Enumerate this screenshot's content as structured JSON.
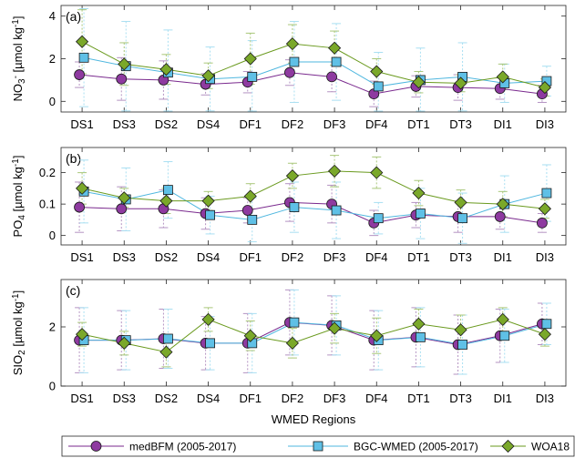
{
  "chart_data": [
    {
      "type": "line",
      "panel_label": "(a)",
      "ylabel_parts": [
        {
          "t": "NO",
          "s": "n"
        },
        {
          "t": "3",
          "s": "sub"
        },
        {
          "t": "-",
          "s": "sup"
        },
        {
          "t": " [µmol kg",
          "s": "n"
        },
        {
          "t": "-1",
          "s": "sup"
        },
        {
          "t": "]",
          "s": "n"
        }
      ],
      "ylim": [
        -0.5,
        4.5
      ],
      "yticks": [
        "0",
        "2",
        "4"
      ],
      "ytick_values": [
        0,
        2,
        4
      ],
      "categories": [
        "DS1",
        "DS3",
        "DS2",
        "DS4",
        "DF1",
        "DF2",
        "DF3",
        "DF4",
        "DT1",
        "DT3",
        "DI1",
        "DI3"
      ],
      "series": [
        {
          "name": "medBFM (2005-2017)",
          "values": [
            1.25,
            1.05,
            1.0,
            0.8,
            0.9,
            1.35,
            1.15,
            0.35,
            0.7,
            0.65,
            0.6,
            0.35
          ],
          "err": [
            0.6,
            1.0,
            0.9,
            0.5,
            0.5,
            0.6,
            0.7,
            0.6,
            0.5,
            0.6,
            0.5,
            0.4
          ]
        },
        {
          "name": "BGC-WMED (2005-2017)",
          "values": [
            2.05,
            1.65,
            1.35,
            1.05,
            1.15,
            1.85,
            1.85,
            0.7,
            1.0,
            1.15,
            0.85,
            0.95
          ],
          "err": [
            2.3,
            2.1,
            2.0,
            1.5,
            1.7,
            1.9,
            1.8,
            1.6,
            1.5,
            1.6,
            0.9,
            0.7
          ]
        },
        {
          "name": "WOA18",
          "values": [
            2.8,
            1.75,
            1.5,
            1.2,
            2.0,
            2.7,
            2.5,
            1.4,
            0.9,
            0.85,
            1.15,
            0.65
          ],
          "err": [
            1.5,
            1.0,
            0.7,
            0.6,
            1.2,
            0.9,
            0.8,
            0.6,
            0.5,
            0.4,
            0.6,
            0.4
          ]
        }
      ]
    },
    {
      "type": "line",
      "panel_label": "(b)",
      "ylabel_parts": [
        {
          "t": "PO",
          "s": "n"
        },
        {
          "t": "4",
          "s": "sub"
        },
        {
          "t": " [µmol kg",
          "s": "n"
        },
        {
          "t": "-1",
          "s": "sup"
        },
        {
          "t": "]",
          "s": "n"
        }
      ],
      "ylim": [
        -0.03,
        0.28
      ],
      "yticks": [
        "0",
        "0.1",
        "0.2"
      ],
      "ytick_values": [
        0,
        0.1,
        0.2
      ],
      "categories": [
        "DS1",
        "DS3",
        "DS2",
        "DS4",
        "DF1",
        "DF2",
        "DF3",
        "DF4",
        "DT1",
        "DT3",
        "DI1",
        "DI3"
      ],
      "series": [
        {
          "name": "medBFM (2005-2017)",
          "values": [
            0.09,
            0.085,
            0.085,
            0.07,
            0.08,
            0.105,
            0.1,
            0.04,
            0.065,
            0.06,
            0.06,
            0.04
          ],
          "err": [
            0.08,
            0.07,
            0.06,
            0.05,
            0.04,
            0.06,
            0.06,
            0.04,
            0.04,
            0.05,
            0.04,
            0.03
          ]
        },
        {
          "name": "BGC-WMED (2005-2017)",
          "values": [
            0.14,
            0.115,
            0.145,
            0.065,
            0.05,
            0.09,
            0.08,
            0.055,
            0.07,
            0.055,
            0.1,
            0.135
          ],
          "err": [
            0.1,
            0.1,
            0.09,
            0.06,
            0.07,
            0.08,
            0.09,
            0.05,
            0.08,
            0.08,
            0.09,
            0.09
          ]
        },
        {
          "name": "WOA18",
          "values": [
            0.15,
            0.12,
            0.11,
            0.11,
            0.125,
            0.19,
            0.205,
            0.2,
            0.135,
            0.105,
            0.1,
            0.085
          ],
          "err": [
            0.05,
            0.03,
            0.04,
            0.03,
            0.04,
            0.04,
            0.05,
            0.05,
            0.04,
            0.04,
            0.04,
            0.03
          ]
        }
      ]
    },
    {
      "type": "line",
      "panel_label": "(c)",
      "ylabel_parts": [
        {
          "t": "SIO",
          "s": "n"
        },
        {
          "t": "2",
          "s": "sub"
        },
        {
          "t": " [µmol kg",
          "s": "n"
        },
        {
          "t": "-1",
          "s": "sup"
        },
        {
          "t": "]",
          "s": "n"
        }
      ],
      "ylim": [
        0,
        3.6
      ],
      "yticks": [
        "0",
        "2"
      ],
      "ytick_values": [
        0,
        2
      ],
      "categories": [
        "DS1",
        "DS3",
        "DS2",
        "DS4",
        "DF1",
        "DF2",
        "DF3",
        "DF4",
        "DT1",
        "DT3",
        "DI1",
        "DI3"
      ],
      "xlabel": "WMED Regions",
      "series": [
        {
          "name": "medBFM (2005-2017)",
          "values": [
            1.55,
            1.55,
            1.6,
            1.45,
            1.45,
            2.15,
            2.05,
            1.55,
            1.65,
            1.4,
            1.7,
            2.1
          ],
          "err": [
            1.1,
            1.0,
            1.0,
            0.9,
            1.0,
            1.1,
            1.0,
            1.0,
            1.0,
            1.0,
            0.9,
            0.7
          ]
        },
        {
          "name": "BGC-WMED (2005-2017)",
          "values": [
            1.55,
            1.55,
            1.6,
            1.45,
            1.45,
            2.15,
            2.05,
            1.55,
            1.65,
            1.4,
            1.7,
            2.1
          ],
          "err": [
            1.1,
            1.0,
            1.0,
            0.9,
            1.0,
            1.1,
            1.0,
            1.0,
            1.0,
            1.0,
            0.9,
            0.7
          ]
        },
        {
          "name": "WOA18",
          "values": [
            1.75,
            1.45,
            1.15,
            2.25,
            1.7,
            1.45,
            1.95,
            1.7,
            2.1,
            1.9,
            2.25,
            1.75
          ],
          "err": [
            0.4,
            0.4,
            0.5,
            0.4,
            0.5,
            0.5,
            0.5,
            0.6,
            0.5,
            0.5,
            0.4,
            0.4
          ]
        }
      ]
    }
  ],
  "legend": {
    "placement": "bottom",
    "entries": [
      "medBFM (2005-2017)",
      "BGC-WMED (2005-2017)",
      "WOA18"
    ]
  },
  "colors": {
    "medBFM (2005-2017)": "#7a2a8e",
    "BGC-WMED (2005-2017)": "#4fb7df",
    "WOA18": "#6a9a1e",
    "err_medBFM (2005-2017)": "#b493c2",
    "err_BGC-WMED (2005-2017)": "#a9dff2",
    "err_WOA18": "#a9c77a",
    "marker_face_medBFM (2005-2017)": "#8e3aa0",
    "marker_face_BGC-WMED (2005-2017)": "#5fc0e6",
    "marker_face_WOA18": "#7aa82a",
    "axis": "#262626"
  },
  "markers": {
    "medBFM (2005-2017)": "circle",
    "BGC-WMED (2005-2017)": "square",
    "WOA18": "diamond"
  }
}
